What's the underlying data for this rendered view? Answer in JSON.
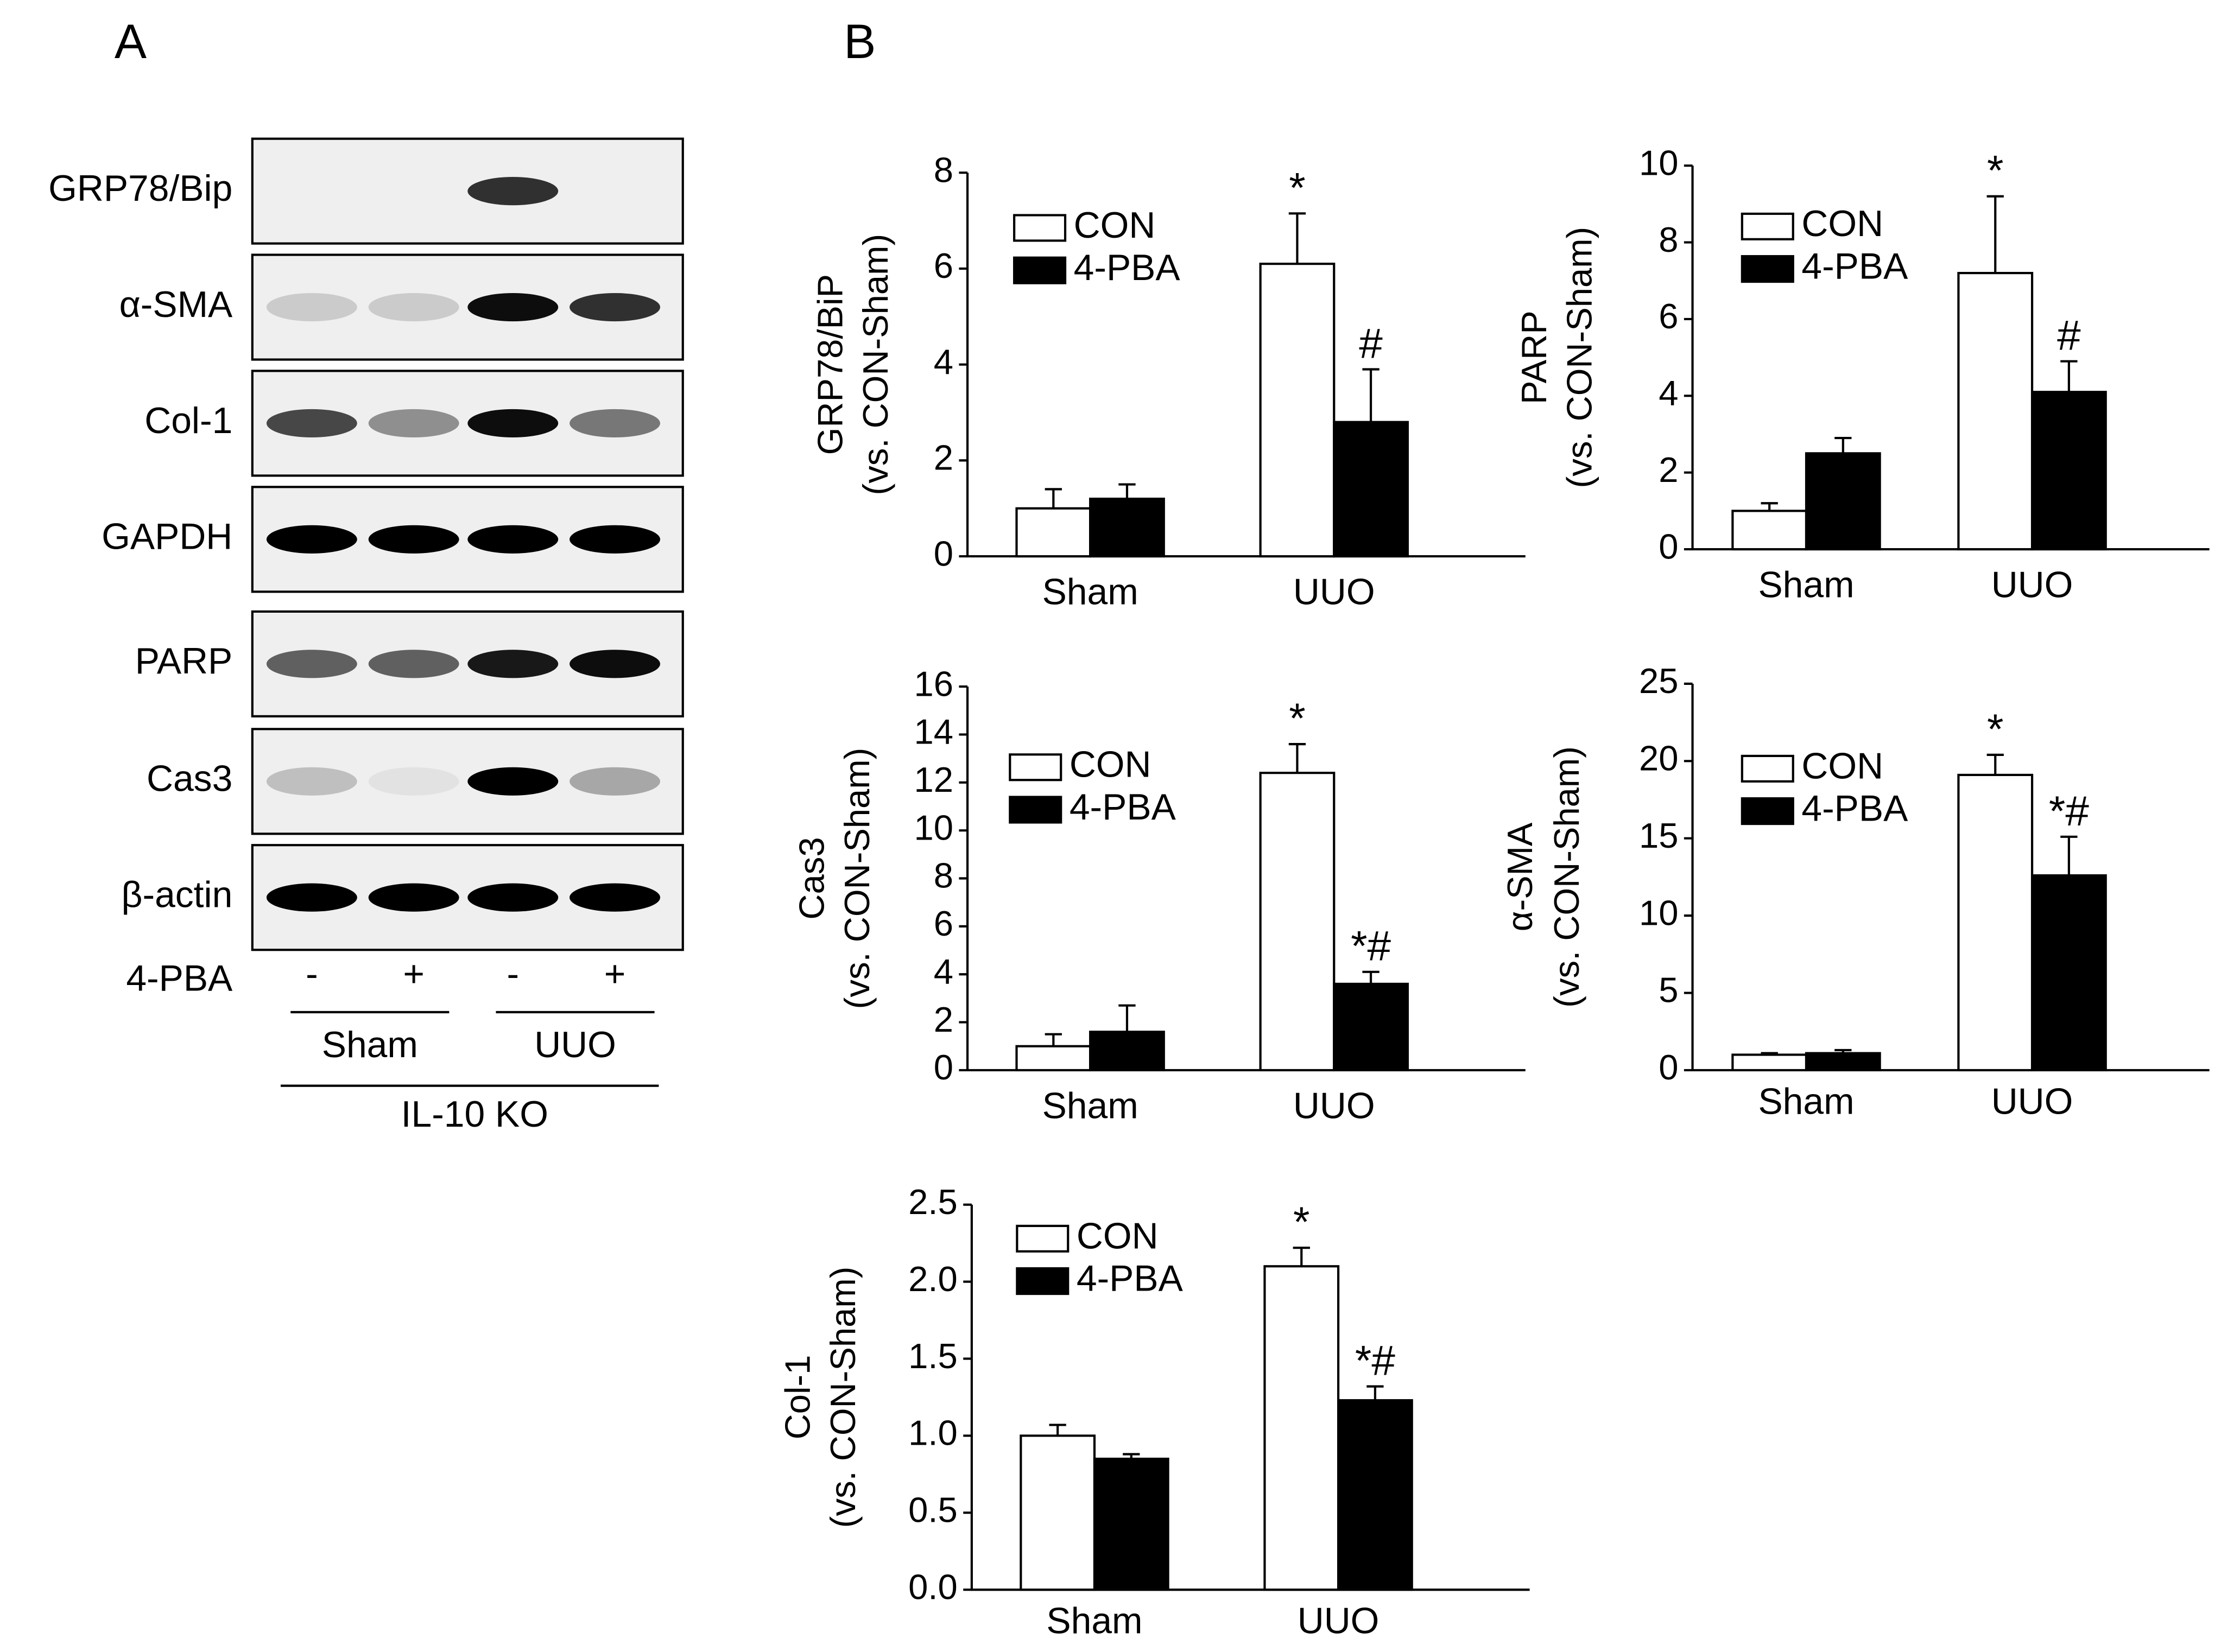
{
  "panel_a": {
    "label": "A",
    "rows": [
      "GRP78/Bip",
      "α-SMA",
      "Col-1",
      "GAPDH",
      "PARP",
      "Cas3",
      "β-actin"
    ],
    "treatment": "4-PBA",
    "signs": [
      "-",
      "+",
      "-",
      "+"
    ],
    "groups": [
      "Sham",
      "UUO"
    ],
    "strain": "IL-10 KO"
  },
  "panel_b_label": "B",
  "chart_data": [
    {
      "type": "bar",
      "ylabel": [
        "GRP78/BiP",
        "(vs. CON-Sham)"
      ],
      "categories": [
        "Sham",
        "UUO"
      ],
      "ylim": [
        0,
        8
      ],
      "yticks": [
        0,
        2,
        4,
        6,
        8
      ],
      "series": [
        {
          "name": "CON",
          "color": "#ffffff",
          "values": [
            1.0,
            6.1
          ],
          "errors": [
            0.4,
            1.05
          ],
          "annotations": [
            null,
            "*"
          ]
        },
        {
          "name": "4-PBA",
          "color": "#000000",
          "values": [
            1.2,
            2.8
          ],
          "errors": [
            0.3,
            1.1
          ],
          "annotations": [
            null,
            "#"
          ]
        }
      ]
    },
    {
      "type": "bar",
      "ylabel": [
        "PARP",
        "(vs. CON-Sham)"
      ],
      "categories": [
        "Sham",
        "UUO"
      ],
      "ylim": [
        0,
        10
      ],
      "yticks": [
        0,
        2,
        4,
        6,
        8,
        10
      ],
      "series": [
        {
          "name": "CON",
          "color": "#ffffff",
          "values": [
            1.0,
            7.2
          ],
          "errors": [
            0.2,
            2.0
          ],
          "annotations": [
            null,
            "*"
          ]
        },
        {
          "name": "4-PBA",
          "color": "#000000",
          "values": [
            2.5,
            4.1
          ],
          "errors": [
            0.4,
            0.8
          ],
          "annotations": [
            null,
            "#"
          ]
        }
      ]
    },
    {
      "type": "bar",
      "ylabel": [
        "Cas3",
        "(vs. CON-Sham)"
      ],
      "categories": [
        "Sham",
        "UUO"
      ],
      "ylim": [
        0,
        16
      ],
      "yticks": [
        0,
        2,
        4,
        6,
        8,
        10,
        12,
        14,
        16
      ],
      "series": [
        {
          "name": "CON",
          "color": "#ffffff",
          "values": [
            1.0,
            12.4
          ],
          "errors": [
            0.5,
            1.2
          ],
          "annotations": [
            null,
            "*"
          ]
        },
        {
          "name": "4-PBA",
          "color": "#000000",
          "values": [
            1.6,
            3.6
          ],
          "errors": [
            1.1,
            0.5
          ],
          "annotations": [
            null,
            "*#"
          ]
        }
      ]
    },
    {
      "type": "bar",
      "ylabel": [
        "α-SMA",
        "(vs. CON-Sham)"
      ],
      "categories": [
        "Sham",
        "UUO"
      ],
      "ylim": [
        0,
        25
      ],
      "yticks": [
        0,
        5,
        10,
        15,
        20,
        25
      ],
      "series": [
        {
          "name": "CON",
          "color": "#ffffff",
          "values": [
            1.0,
            19.1
          ],
          "errors": [
            0.1,
            1.3
          ],
          "annotations": [
            null,
            "*"
          ]
        },
        {
          "name": "4-PBA",
          "color": "#000000",
          "values": [
            1.1,
            12.6
          ],
          "errors": [
            0.2,
            2.5
          ],
          "annotations": [
            null,
            "*#"
          ]
        }
      ]
    },
    {
      "type": "bar",
      "ylabel": [
        "Col-1",
        "(vs. CON-Sham)"
      ],
      "categories": [
        "Sham",
        "UUO"
      ],
      "ylim": [
        0,
        2.5
      ],
      "yticks": [
        {
          "value": 0,
          "label": "0.0"
        },
        0.5,
        {
          "value": 1,
          "label": "1.0"
        },
        1.5,
        {
          "value": 2,
          "label": "2.0"
        },
        2.5
      ],
      "series": [
        {
          "name": "CON",
          "color": "#ffffff",
          "values": [
            1.0,
            2.1
          ],
          "errors": [
            0.07,
            0.12
          ],
          "annotations": [
            null,
            "*"
          ]
        },
        {
          "name": "4-PBA",
          "color": "#000000",
          "values": [
            0.85,
            1.23
          ],
          "errors": [
            0.03,
            0.09
          ],
          "annotations": [
            null,
            "*#"
          ]
        }
      ]
    }
  ]
}
